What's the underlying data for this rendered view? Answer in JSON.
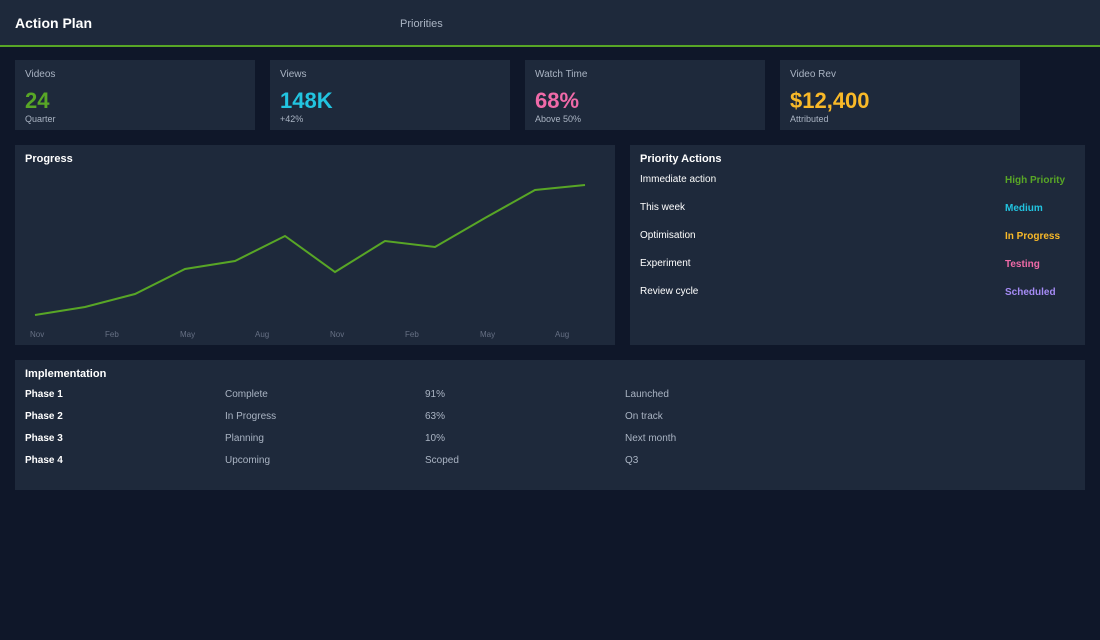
{
  "header": {
    "title": "Action Plan",
    "nav": "Priorities"
  },
  "kpis": [
    {
      "label": "Videos",
      "value": "24",
      "sub": "Quarter",
      "color": "#58a626"
    },
    {
      "label": "Views",
      "value": "148K",
      "sub": "+42%",
      "color": "#22c4e0"
    },
    {
      "label": "Watch Time",
      "value": "68%",
      "sub": "Above 50%",
      "color": "#f06aa8"
    },
    {
      "label": "Video Rev",
      "value": "$12,400",
      "sub": "Attributed",
      "color": "#f9b928"
    }
  ],
  "progress": {
    "title": "Progress",
    "chart_data": {
      "type": "line",
      "color": "#58a626",
      "values": [
        5,
        13,
        26,
        51,
        59,
        84,
        48,
        79,
        73,
        102,
        130,
        135
      ],
      "xlabels": [
        "Nov",
        "Feb",
        "May",
        "Aug",
        "Nov",
        "Feb",
        "May",
        "Aug"
      ],
      "ylim": [
        0,
        140
      ]
    }
  },
  "priority": {
    "title": "Priority Actions",
    "items": [
      {
        "label": "Immediate action",
        "status": "High Priority",
        "color": "#58a626"
      },
      {
        "label": "This week",
        "status": "Medium",
        "color": "#22c4e0"
      },
      {
        "label": "Optimisation",
        "status": "In Progress",
        "color": "#f9b928"
      },
      {
        "label": "Experiment",
        "status": "Testing",
        "color": "#f06aa8"
      },
      {
        "label": "Review cycle",
        "status": "Scheduled",
        "color": "#a58bf5"
      }
    ]
  },
  "implementation": {
    "title": "Implementation",
    "rows": [
      [
        "Phase 1",
        "Complete",
        "91%",
        "Launched"
      ],
      [
        "Phase 2",
        "In Progress",
        "63%",
        "On track"
      ],
      [
        "Phase 3",
        "Planning",
        "10%",
        "Next month"
      ],
      [
        "Phase 4",
        "Upcoming",
        "Scoped",
        "Q3"
      ]
    ]
  }
}
